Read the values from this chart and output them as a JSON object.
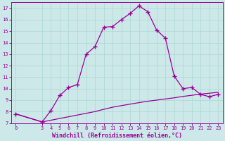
{
  "xlabel": "Windchill (Refroidissement éolien,°C)",
  "bg_color": "#cce8e8",
  "line_color": "#990099",
  "xlim": [
    -0.5,
    23.5
  ],
  "ylim": [
    7,
    17.5
  ],
  "yticks": [
    7,
    8,
    9,
    10,
    11,
    12,
    13,
    14,
    15,
    16,
    17
  ],
  "xticks": [
    0,
    3,
    4,
    5,
    6,
    7,
    8,
    9,
    10,
    11,
    12,
    13,
    14,
    15,
    16,
    17,
    18,
    19,
    20,
    21,
    22,
    23
  ],
  "series1_x": [
    0,
    3,
    4,
    5,
    6,
    7,
    8,
    9,
    10,
    11,
    12,
    13,
    14,
    15,
    16,
    17,
    18,
    19,
    20,
    21,
    22,
    23
  ],
  "series1_y": [
    7.8,
    7.1,
    8.1,
    9.4,
    10.1,
    10.35,
    13.0,
    13.65,
    15.35,
    15.4,
    16.0,
    16.55,
    17.2,
    16.7,
    15.1,
    14.4,
    11.1,
    10.0,
    10.1,
    9.5,
    9.3,
    9.5
  ],
  "series2_x": [
    0,
    3,
    4,
    5,
    6,
    7,
    8,
    9,
    10,
    11,
    12,
    13,
    14,
    15,
    16,
    17,
    18,
    19,
    20,
    21,
    22,
    23
  ],
  "series2_y": [
    7.8,
    7.1,
    7.25,
    7.4,
    7.55,
    7.7,
    7.85,
    8.0,
    8.2,
    8.38,
    8.52,
    8.65,
    8.78,
    8.9,
    9.0,
    9.1,
    9.2,
    9.32,
    9.42,
    9.52,
    9.6,
    9.68
  ],
  "marker": "+",
  "marker_size": 4,
  "marker_lw": 1.0,
  "line_width": 0.9,
  "font_color": "#990099",
  "grid_color": "#aad8d0",
  "tick_fontsize": 5.0,
  "label_fontsize": 6.0
}
